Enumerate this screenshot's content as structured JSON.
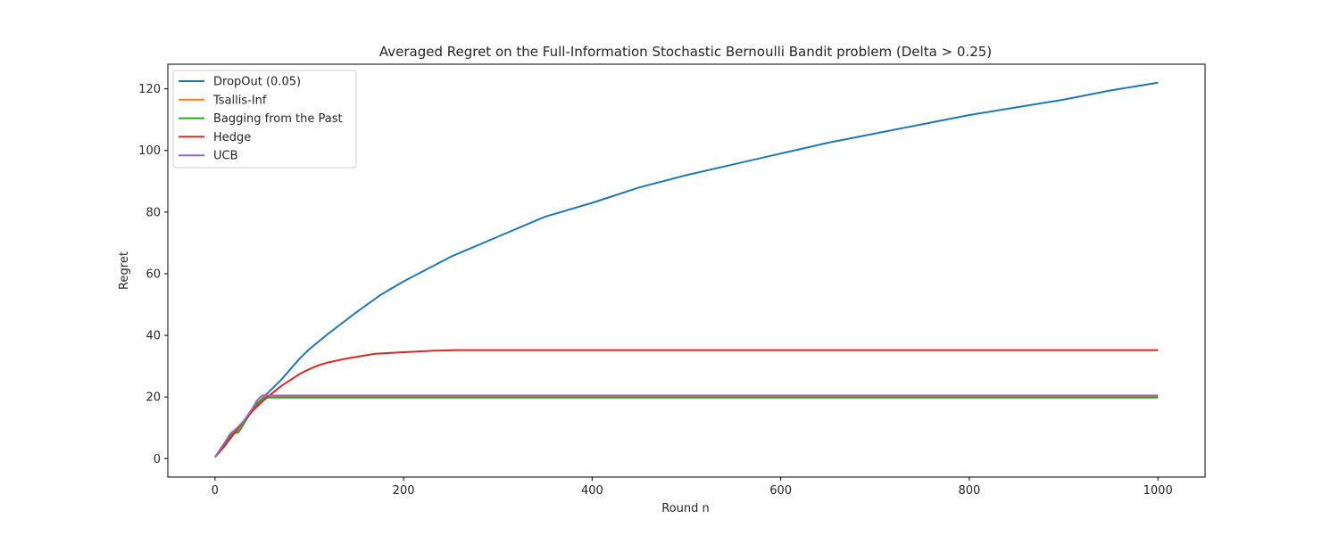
{
  "chart_data": {
    "type": "line",
    "title": "Averaged Regret on the Full-Information Stochastic Bernoulli Bandit problem (Delta > 0.25)",
    "xlabel": "Round n",
    "ylabel": "Regret",
    "xlim": [
      -50,
      1050
    ],
    "ylim": [
      -6,
      128
    ],
    "xticks": [
      0,
      200,
      400,
      600,
      800,
      1000
    ],
    "yticks": [
      0,
      20,
      40,
      60,
      80,
      100,
      120
    ],
    "grid": false,
    "legend_position": "top-left",
    "series": [
      {
        "name": "DropOut (0.05)",
        "color": "#1f77b4",
        "points": [
          [
            0,
            0.5
          ],
          [
            10,
            4
          ],
          [
            20,
            8.5
          ],
          [
            30,
            12
          ],
          [
            40,
            16
          ],
          [
            50,
            19.5
          ],
          [
            60,
            22.5
          ],
          [
            70,
            25.5
          ],
          [
            80,
            29
          ],
          [
            90,
            32.5
          ],
          [
            100,
            35.5
          ],
          [
            120,
            40.5
          ],
          [
            150,
            47.5
          ],
          [
            175,
            53
          ],
          [
            200,
            57.5
          ],
          [
            250,
            65.5
          ],
          [
            300,
            72
          ],
          [
            350,
            78.5
          ],
          [
            400,
            83
          ],
          [
            450,
            88
          ],
          [
            500,
            92
          ],
          [
            550,
            95.5
          ],
          [
            600,
            99
          ],
          [
            650,
            102.5
          ],
          [
            700,
            105.5
          ],
          [
            750,
            108.5
          ],
          [
            800,
            111.5
          ],
          [
            850,
            114
          ],
          [
            900,
            116.5
          ],
          [
            950,
            119.5
          ],
          [
            1000,
            122
          ]
        ]
      },
      {
        "name": "Tsallis-Inf",
        "color": "#ff7f0e",
        "points": [
          [
            0,
            0.5
          ],
          [
            10,
            4.5
          ],
          [
            18,
            8.5
          ],
          [
            25,
            9
          ],
          [
            35,
            13.5
          ],
          [
            45,
            18
          ],
          [
            52,
            20
          ],
          [
            60,
            20
          ],
          [
            100,
            20
          ],
          [
            300,
            20
          ],
          [
            600,
            20
          ],
          [
            1000,
            20
          ]
        ]
      },
      {
        "name": "Bagging from the Past",
        "color": "#2ca02c",
        "points": [
          [
            0,
            0.5
          ],
          [
            10,
            4.5
          ],
          [
            18,
            8
          ],
          [
            25,
            8.5
          ],
          [
            35,
            13.5
          ],
          [
            45,
            18
          ],
          [
            52,
            19.8
          ],
          [
            60,
            19.8
          ],
          [
            100,
            19.8
          ],
          [
            300,
            19.8
          ],
          [
            600,
            19.8
          ],
          [
            1000,
            19.8
          ]
        ]
      },
      {
        "name": "Hedge",
        "color": "#d62728",
        "points": [
          [
            0,
            0.5
          ],
          [
            10,
            4
          ],
          [
            20,
            8
          ],
          [
            30,
            12
          ],
          [
            40,
            15.5
          ],
          [
            50,
            18.5
          ],
          [
            60,
            21
          ],
          [
            70,
            23.5
          ],
          [
            80,
            25.5
          ],
          [
            90,
            27.5
          ],
          [
            100,
            29
          ],
          [
            110,
            30.3
          ],
          [
            120,
            31.2
          ],
          [
            140,
            32.5
          ],
          [
            170,
            34
          ],
          [
            200,
            34.5
          ],
          [
            230,
            35
          ],
          [
            260,
            35.2
          ],
          [
            300,
            35.2
          ],
          [
            600,
            35.2
          ],
          [
            1000,
            35.2
          ]
        ]
      },
      {
        "name": "UCB",
        "color": "#9467bd",
        "points": [
          [
            0,
            0.5
          ],
          [
            10,
            5
          ],
          [
            16,
            8
          ],
          [
            22,
            9.5
          ],
          [
            30,
            12
          ],
          [
            38,
            15.5
          ],
          [
            45,
            19
          ],
          [
            50,
            20.5
          ],
          [
            60,
            20.5
          ],
          [
            100,
            20.5
          ],
          [
            300,
            20.5
          ],
          [
            600,
            20.5
          ],
          [
            1000,
            20.5
          ]
        ]
      }
    ]
  }
}
